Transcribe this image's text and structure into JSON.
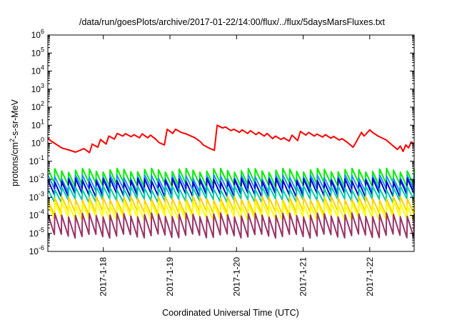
{
  "chart_data": {
    "type": "line",
    "title": "/data/run/goesPlots/archive/2017-01-22/14:00/flux/../flux/5daysMarsFluxes.txt",
    "xlabel": "Coordinated Universal Time (UTC)",
    "ylabel_parts": [
      "protons/cm",
      "2",
      "-s-sr-MeV"
    ],
    "y_scale": "log",
    "ylim": [
      1e-06,
      1000000.0
    ],
    "x_range_days": [
      "2017-01-17 04:00",
      "2017-01-22 16:00"
    ],
    "xticks": [
      "2017-1-18",
      "2017-1-19",
      "2017-1-20",
      "2017-1-21",
      "2017-1-22"
    ],
    "yticks": [
      {
        "base": "10",
        "exp": "-6"
      },
      {
        "base": "10",
        "exp": "-5"
      },
      {
        "base": "10",
        "exp": "-4"
      },
      {
        "base": "10",
        "exp": "-3"
      },
      {
        "base": "10",
        "exp": "-2"
      },
      {
        "base": "10",
        "exp": "-1"
      },
      {
        "base": "10",
        "exp": "0"
      },
      {
        "base": "10",
        "exp": "1"
      },
      {
        "base": "10",
        "exp": "2"
      },
      {
        "base": "10",
        "exp": "3"
      },
      {
        "base": "10",
        "exp": "4"
      },
      {
        "base": "10",
        "exp": "5"
      },
      {
        "base": "10",
        "exp": "6"
      }
    ],
    "grid": false,
    "legend": "none",
    "series": [
      {
        "color": "#ff0000",
        "x": [
          "2017-01-17 04:00",
          "2017-01-17 06:00",
          "2017-01-17 09:00",
          "2017-01-17 12:00",
          "2017-01-17 14:00",
          "2017-01-17 17:00",
          "2017-01-17 19:00",
          "2017-01-17 20:00",
          "2017-01-17 22:00",
          "2017-01-17 23:00",
          "2017-01-18 01:00",
          "2017-01-18 02:00",
          "2017-01-18 04:00",
          "2017-01-18 05:00",
          "2017-01-18 07:00",
          "2017-01-18 08:00",
          "2017-01-18 10:00",
          "2017-01-18 11:00",
          "2017-01-18 13:00",
          "2017-01-18 14:00",
          "2017-01-18 16:00",
          "2017-01-18 17:00",
          "2017-01-18 19:00",
          "2017-01-18 20:00",
          "2017-01-18 22:00",
          "2017-01-18 23:00",
          "2017-01-19 01:00",
          "2017-01-19 02:00",
          "2017-01-19 04:00",
          "2017-01-19 06:00",
          "2017-01-19 09:00",
          "2017-01-19 11:00",
          "2017-01-19 12:00",
          "2017-01-19 14:00",
          "2017-01-19 16:00",
          "2017-01-19 17:00",
          "2017-01-19 19:00",
          "2017-01-19 20:00",
          "2017-01-19 22:00",
          "2017-01-19 23:00",
          "2017-01-20 01:00",
          "2017-01-20 02:00",
          "2017-01-20 04:00",
          "2017-01-20 05:00",
          "2017-01-20 07:00",
          "2017-01-20 08:00",
          "2017-01-20 10:00",
          "2017-01-20 11:00",
          "2017-01-20 13:00",
          "2017-01-20 14:00",
          "2017-01-20 16:00",
          "2017-01-20 17:00",
          "2017-01-20 19:00",
          "2017-01-20 20:00",
          "2017-01-20 22:00",
          "2017-01-20 23:00",
          "2017-01-21 01:00",
          "2017-01-21 02:00",
          "2017-01-21 04:00",
          "2017-01-21 05:00",
          "2017-01-21 07:00",
          "2017-01-21 08:00",
          "2017-01-21 10:00",
          "2017-01-21 11:00",
          "2017-01-21 13:00",
          "2017-01-21 14:00",
          "2017-01-21 16:00",
          "2017-01-21 18:00",
          "2017-01-21 19:00",
          "2017-01-21 21:00",
          "2017-01-21 22:00",
          "2017-01-22 00:00",
          "2017-01-22 01:00",
          "2017-01-22 03:00",
          "2017-01-22 06:00",
          "2017-01-22 08:00",
          "2017-01-22 10:00",
          "2017-01-22 11:00",
          "2017-01-22 12:00",
          "2017-01-22 13:00",
          "2017-01-22 14:00",
          "2017-01-22 15:00",
          "2017-01-22 16:00"
        ],
        "y": [
          1.8,
          1.1,
          0.55,
          0.4,
          0.32,
          0.5,
          0.3,
          0.9,
          0.6,
          1.6,
          0.9,
          2.5,
          1.7,
          3.5,
          2.5,
          3.4,
          2.3,
          3.0,
          2.0,
          3.3,
          2.0,
          2.8,
          1.6,
          1.1,
          0.8,
          6.0,
          3.5,
          6.0,
          4.0,
          3.2,
          2.0,
          1.2,
          0.8,
          0.55,
          0.4,
          10.0,
          7.0,
          8.0,
          5.0,
          6.0,
          4.0,
          5.5,
          3.5,
          5.0,
          3.0,
          4.0,
          2.5,
          3.5,
          1.8,
          2.5,
          1.6,
          2.0,
          1.3,
          2.8,
          1.4,
          4.5,
          2.8,
          4.0,
          2.5,
          3.2,
          2.2,
          3.0,
          1.9,
          2.4,
          1.5,
          1.8,
          1.1,
          0.6,
          1.1,
          4.0,
          2.5,
          5.5,
          4.0,
          2.5,
          1.5,
          0.8,
          0.45,
          0.7,
          0.35,
          0.8,
          0.55,
          1.2,
          0.9
        ]
      },
      {
        "color": "#00ee00",
        "base": 0.013,
        "amp": 2.5
      },
      {
        "color": "#1e90ff",
        "base": 0.006,
        "amp": 2.4
      },
      {
        "color": "#0000cc",
        "base": 0.0035,
        "amp": 2.6
      },
      {
        "color": "#00ccaa",
        "base": 0.0015,
        "amp": 2.3
      },
      {
        "color": "#ffd000",
        "base": 0.00035,
        "amp": 2.6
      },
      {
        "color": "#ffff00",
        "base": 0.00018,
        "amp": 2.6
      },
      {
        "color": "#993366",
        "base": 2.8e-05,
        "amp": 3.8
      }
    ],
    "sawtooth_periods": 53
  }
}
